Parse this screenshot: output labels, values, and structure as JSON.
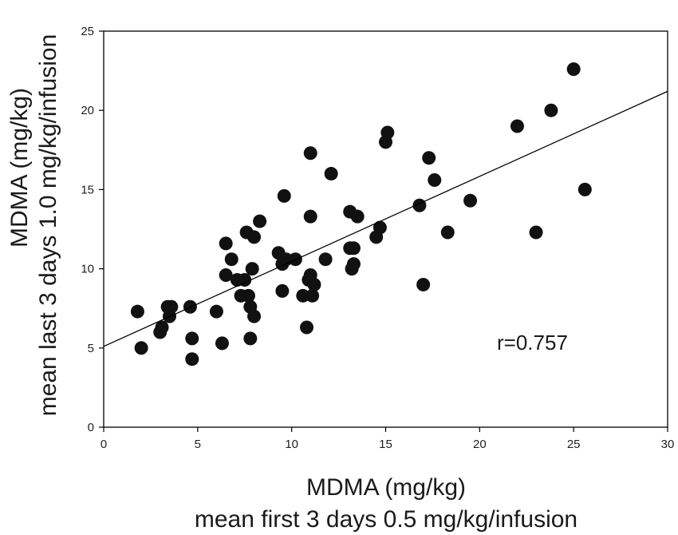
{
  "chart_data": {
    "type": "scatter",
    "xlabel": [
      "MDMA (mg/kg)",
      "mean first 3 days 0.5 mg/kg/infusion"
    ],
    "ylabel": [
      "MDMA (mg/kg)",
      "mean last 3 days 1.0 mg/kg/infusion"
    ],
    "xlim": [
      0,
      30
    ],
    "ylim": [
      0,
      25
    ],
    "xticks": [
      0,
      5,
      10,
      15,
      20,
      25,
      30
    ],
    "yticks": [
      0,
      5,
      10,
      15,
      20,
      25
    ],
    "grid": false,
    "annotation": "r=0.757",
    "trendline": {
      "x": [
        0,
        30
      ],
      "y": [
        5.1,
        21.2
      ]
    },
    "points": [
      {
        "x": 1.8,
        "y": 7.3
      },
      {
        "x": 2.0,
        "y": 5.0
      },
      {
        "x": 3.0,
        "y": 6.0
      },
      {
        "x": 3.1,
        "y": 6.3
      },
      {
        "x": 3.4,
        "y": 7.6
      },
      {
        "x": 3.5,
        "y": 7.0
      },
      {
        "x": 3.6,
        "y": 7.6
      },
      {
        "x": 4.6,
        "y": 7.6
      },
      {
        "x": 4.7,
        "y": 5.6
      },
      {
        "x": 4.7,
        "y": 4.3
      },
      {
        "x": 6.0,
        "y": 7.3
      },
      {
        "x": 6.3,
        "y": 5.3
      },
      {
        "x": 6.5,
        "y": 11.6
      },
      {
        "x": 6.5,
        "y": 9.6
      },
      {
        "x": 6.8,
        "y": 10.6
      },
      {
        "x": 7.1,
        "y": 9.3
      },
      {
        "x": 7.3,
        "y": 8.3
      },
      {
        "x": 7.5,
        "y": 9.3
      },
      {
        "x": 7.6,
        "y": 12.3
      },
      {
        "x": 7.7,
        "y": 8.3
      },
      {
        "x": 7.8,
        "y": 7.6
      },
      {
        "x": 7.8,
        "y": 5.6
      },
      {
        "x": 7.9,
        "y": 10.0
      },
      {
        "x": 8.0,
        "y": 12.0
      },
      {
        "x": 8.0,
        "y": 7.0
      },
      {
        "x": 8.3,
        "y": 13.0
      },
      {
        "x": 9.3,
        "y": 11.0
      },
      {
        "x": 9.5,
        "y": 10.3
      },
      {
        "x": 9.5,
        "y": 8.6
      },
      {
        "x": 9.6,
        "y": 14.6
      },
      {
        "x": 9.7,
        "y": 10.6
      },
      {
        "x": 10.2,
        "y": 10.6
      },
      {
        "x": 10.6,
        "y": 8.3
      },
      {
        "x": 10.8,
        "y": 6.3
      },
      {
        "x": 10.9,
        "y": 9.3
      },
      {
        "x": 11.0,
        "y": 17.3
      },
      {
        "x": 11.0,
        "y": 13.3
      },
      {
        "x": 11.0,
        "y": 9.6
      },
      {
        "x": 11.1,
        "y": 8.3
      },
      {
        "x": 11.2,
        "y": 9.0
      },
      {
        "x": 11.8,
        "y": 10.6
      },
      {
        "x": 12.1,
        "y": 16.0
      },
      {
        "x": 13.1,
        "y": 13.6
      },
      {
        "x": 13.1,
        "y": 11.3
      },
      {
        "x": 13.2,
        "y": 10.0
      },
      {
        "x": 13.3,
        "y": 10.3
      },
      {
        "x": 13.3,
        "y": 11.3
      },
      {
        "x": 13.5,
        "y": 13.3
      },
      {
        "x": 14.5,
        "y": 12.0
      },
      {
        "x": 14.7,
        "y": 12.6
      },
      {
        "x": 15.0,
        "y": 18.0
      },
      {
        "x": 15.1,
        "y": 18.6
      },
      {
        "x": 16.8,
        "y": 14.0
      },
      {
        "x": 17.0,
        "y": 9.0
      },
      {
        "x": 17.3,
        "y": 17.0
      },
      {
        "x": 17.6,
        "y": 15.6
      },
      {
        "x": 18.3,
        "y": 12.3
      },
      {
        "x": 19.5,
        "y": 14.3
      },
      {
        "x": 22.0,
        "y": 19.0
      },
      {
        "x": 23.0,
        "y": 12.3
      },
      {
        "x": 23.8,
        "y": 20.0
      },
      {
        "x": 25.0,
        "y": 22.6
      },
      {
        "x": 25.6,
        "y": 15.0
      }
    ]
  }
}
